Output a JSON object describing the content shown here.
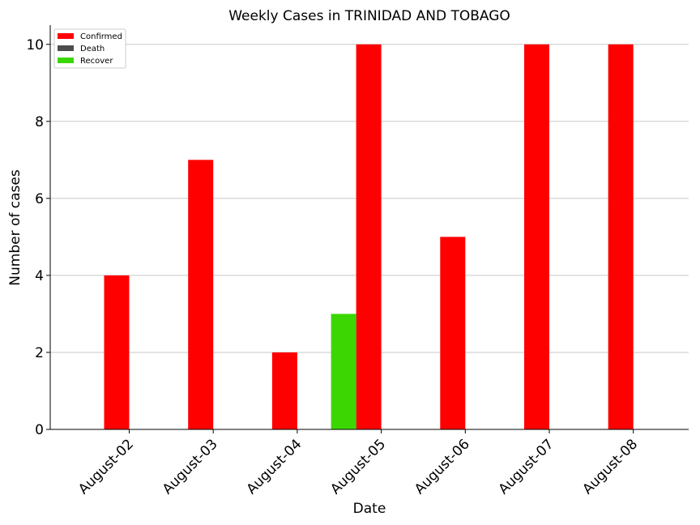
{
  "chart_data": {
    "type": "bar",
    "title": "Weekly Cases in TRINIDAD AND TOBAGO",
    "xlabel": "Date",
    "ylabel": "Number of cases",
    "categories": [
      "August-02",
      "August-03",
      "August-04",
      "August-05",
      "August-06",
      "August-07",
      "August-08"
    ],
    "series": [
      {
        "name": "Confirmed",
        "color": "#ff0000",
        "values": [
          4,
          7,
          2,
          10,
          5,
          10,
          10
        ]
      },
      {
        "name": "Death",
        "color": "#4d4d4d",
        "values": [
          0,
          0,
          0,
          0,
          0,
          0,
          0
        ]
      },
      {
        "name": "Recover",
        "color": "#3cd703",
        "values": [
          0,
          0,
          0,
          3,
          0,
          0,
          0
        ]
      }
    ],
    "ylim": [
      0,
      10.5
    ],
    "yticks": [
      0,
      2,
      4,
      6,
      8,
      10
    ],
    "grid": "horizontal",
    "legend_position": "top-left"
  }
}
